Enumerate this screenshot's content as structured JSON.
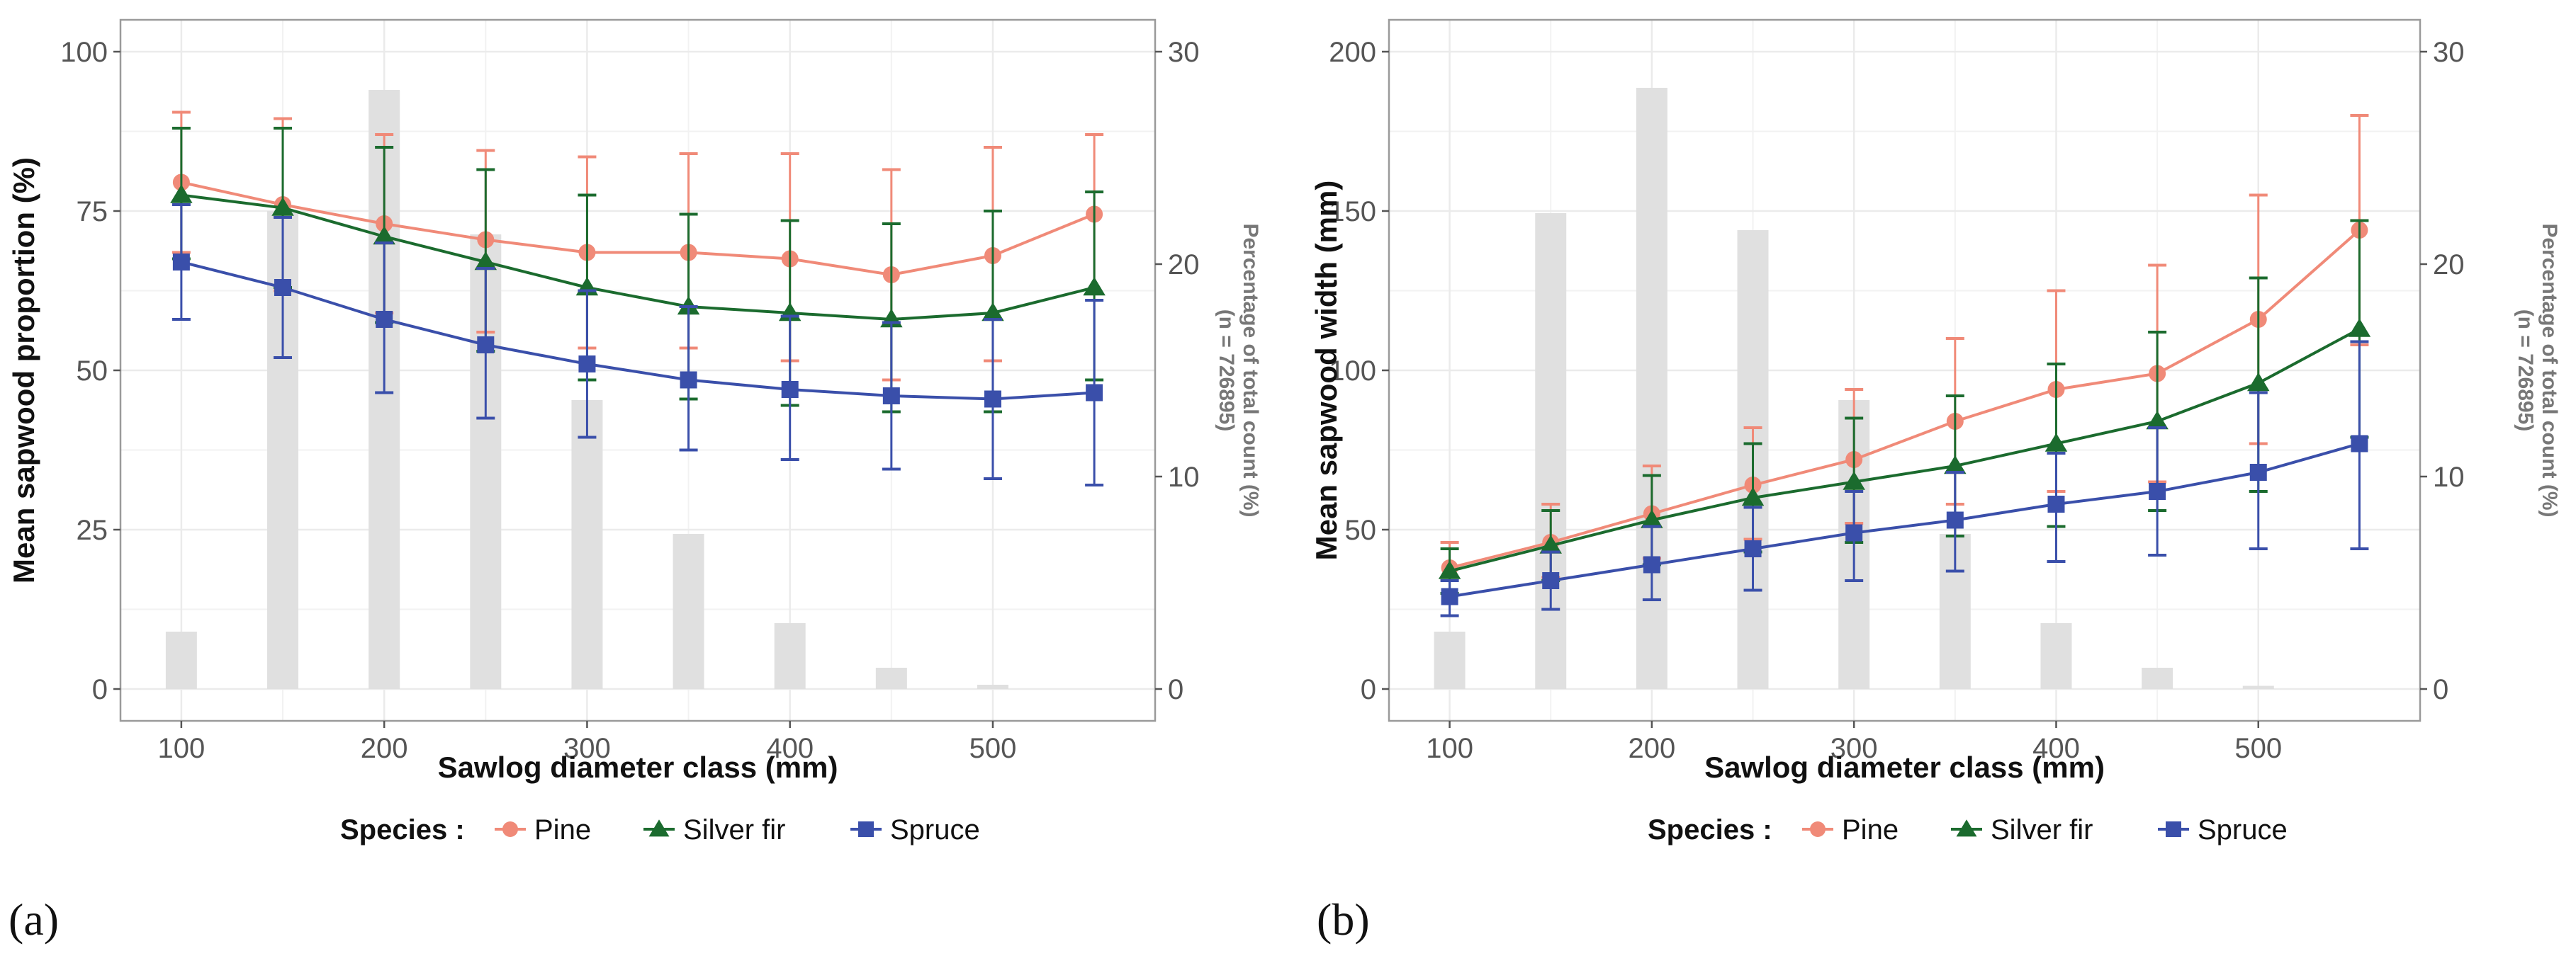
{
  "legend": {
    "title": "Species :",
    "entries": [
      "Pine",
      "Silver fir",
      "Spruce"
    ]
  },
  "colors": {
    "Pine": "#F08A78",
    "Silver fir": "#1B6B2E",
    "Spruce": "#3A4FAA",
    "bars": "#E0E0E0"
  },
  "chart_data": [
    {
      "panel_label": "(a)",
      "type": "line",
      "x": [
        100,
        150,
        200,
        250,
        300,
        350,
        400,
        450,
        500,
        550
      ],
      "xlabel": "Sawlog diameter class (mm)",
      "ylabel": "Mean sapwood proportion (%)",
      "ylim": [
        -5,
        105
      ],
      "yticks": [
        0,
        25,
        50,
        75,
        100
      ],
      "xticks": [
        100,
        200,
        300,
        400,
        500
      ],
      "y2label_line1": "Percentage of total count (%)",
      "y2label_line2": "(n = 726895)",
      "y2lim": [
        -1.5,
        31.5
      ],
      "y2ticks": [
        0,
        10,
        20,
        30
      ],
      "bar_values": [
        2.7,
        22.5,
        28.2,
        21.4,
        13.6,
        7.3,
        3.1,
        1.0,
        0.2,
        0
      ],
      "series": [
        {
          "name": "Pine",
          "marker": "circle",
          "values": [
            79.5,
            76.0,
            73.0,
            70.5,
            68.5,
            68.5,
            67.5,
            65.0,
            68.0,
            74.5
          ],
          "upper": [
            90.5,
            89.5,
            87.0,
            84.5,
            83.5,
            84.0,
            84.0,
            81.5,
            85.0,
            87.0
          ],
          "lower": [
            68.5,
            62.5,
            59.0,
            56.0,
            53.5,
            53.5,
            51.5,
            48.5,
            51.5,
            62.0
          ]
        },
        {
          "name": "Silver fir",
          "marker": "triangle",
          "values": [
            77.5,
            75.5,
            71.0,
            67.0,
            63.0,
            60.0,
            59.0,
            58.0,
            59.0,
            63.0
          ],
          "upper": [
            88.0,
            88.0,
            85.0,
            81.5,
            77.5,
            74.5,
            73.5,
            73.0,
            75.0,
            78.0
          ],
          "lower": [
            67.5,
            63.0,
            57.5,
            53.0,
            48.5,
            45.5,
            44.5,
            43.5,
            43.5,
            48.5
          ]
        },
        {
          "name": "Spruce",
          "marker": "square",
          "values": [
            67.0,
            63.0,
            58.0,
            54.0,
            51.0,
            48.5,
            47.0,
            46.0,
            45.5,
            46.5
          ],
          "upper": [
            76.0,
            74.0,
            70.0,
            66.0,
            62.5,
            60.0,
            58.5,
            57.5,
            58.0,
            61.0
          ],
          "lower": [
            58.0,
            52.0,
            46.5,
            42.5,
            39.5,
            37.5,
            36.0,
            34.5,
            33.0,
            32.0
          ]
        }
      ]
    },
    {
      "panel_label": "(b)",
      "type": "line",
      "x": [
        100,
        150,
        200,
        250,
        300,
        350,
        400,
        450,
        500,
        550
      ],
      "xlabel": "Sawlog diameter class (mm)",
      "ylabel": "Mean sapwood width (mm)",
      "ylim": [
        -10,
        210
      ],
      "yticks": [
        0,
        50,
        100,
        150,
        200
      ],
      "xticks": [
        100,
        200,
        300,
        400,
        500
      ],
      "y2label_line1": "Percentage of total count (%)",
      "y2label_line2": "(n = 726895)",
      "y2lim": [
        -1.5,
        31.5
      ],
      "y2ticks": [
        0,
        10,
        20,
        30
      ],
      "bar_values": [
        2.7,
        22.4,
        28.3,
        21.6,
        13.6,
        7.3,
        3.1,
        1.0,
        0.15,
        0
      ],
      "series": [
        {
          "name": "Pine",
          "marker": "circle",
          "values": [
            38,
            46,
            55,
            64,
            72,
            84,
            94,
            99,
            116,
            144
          ],
          "upper": [
            46,
            58,
            70,
            82,
            94,
            110,
            125,
            133,
            155,
            180
          ],
          "lower": [
            30,
            35,
            41,
            47,
            52,
            58,
            62,
            65,
            77,
            108
          ]
        },
        {
          "name": "Silver fir",
          "marker": "triangle",
          "values": [
            37,
            45,
            53,
            60,
            65,
            70,
            77,
            84,
            96,
            113
          ],
          "upper": [
            44,
            56,
            67,
            77,
            85,
            92,
            102,
            112,
            129,
            147
          ],
          "lower": [
            30,
            34,
            39,
            43,
            46,
            48,
            51,
            56,
            62,
            79
          ]
        },
        {
          "name": "Spruce",
          "marker": "square",
          "values": [
            29,
            34,
            39,
            44,
            49,
            53,
            58,
            62,
            68,
            77
          ],
          "upper": [
            34,
            43,
            51,
            57,
            62,
            68,
            74,
            82,
            93,
            109
          ],
          "lower": [
            23,
            25,
            28,
            31,
            34,
            37,
            40,
            42,
            44,
            44
          ]
        }
      ]
    }
  ]
}
